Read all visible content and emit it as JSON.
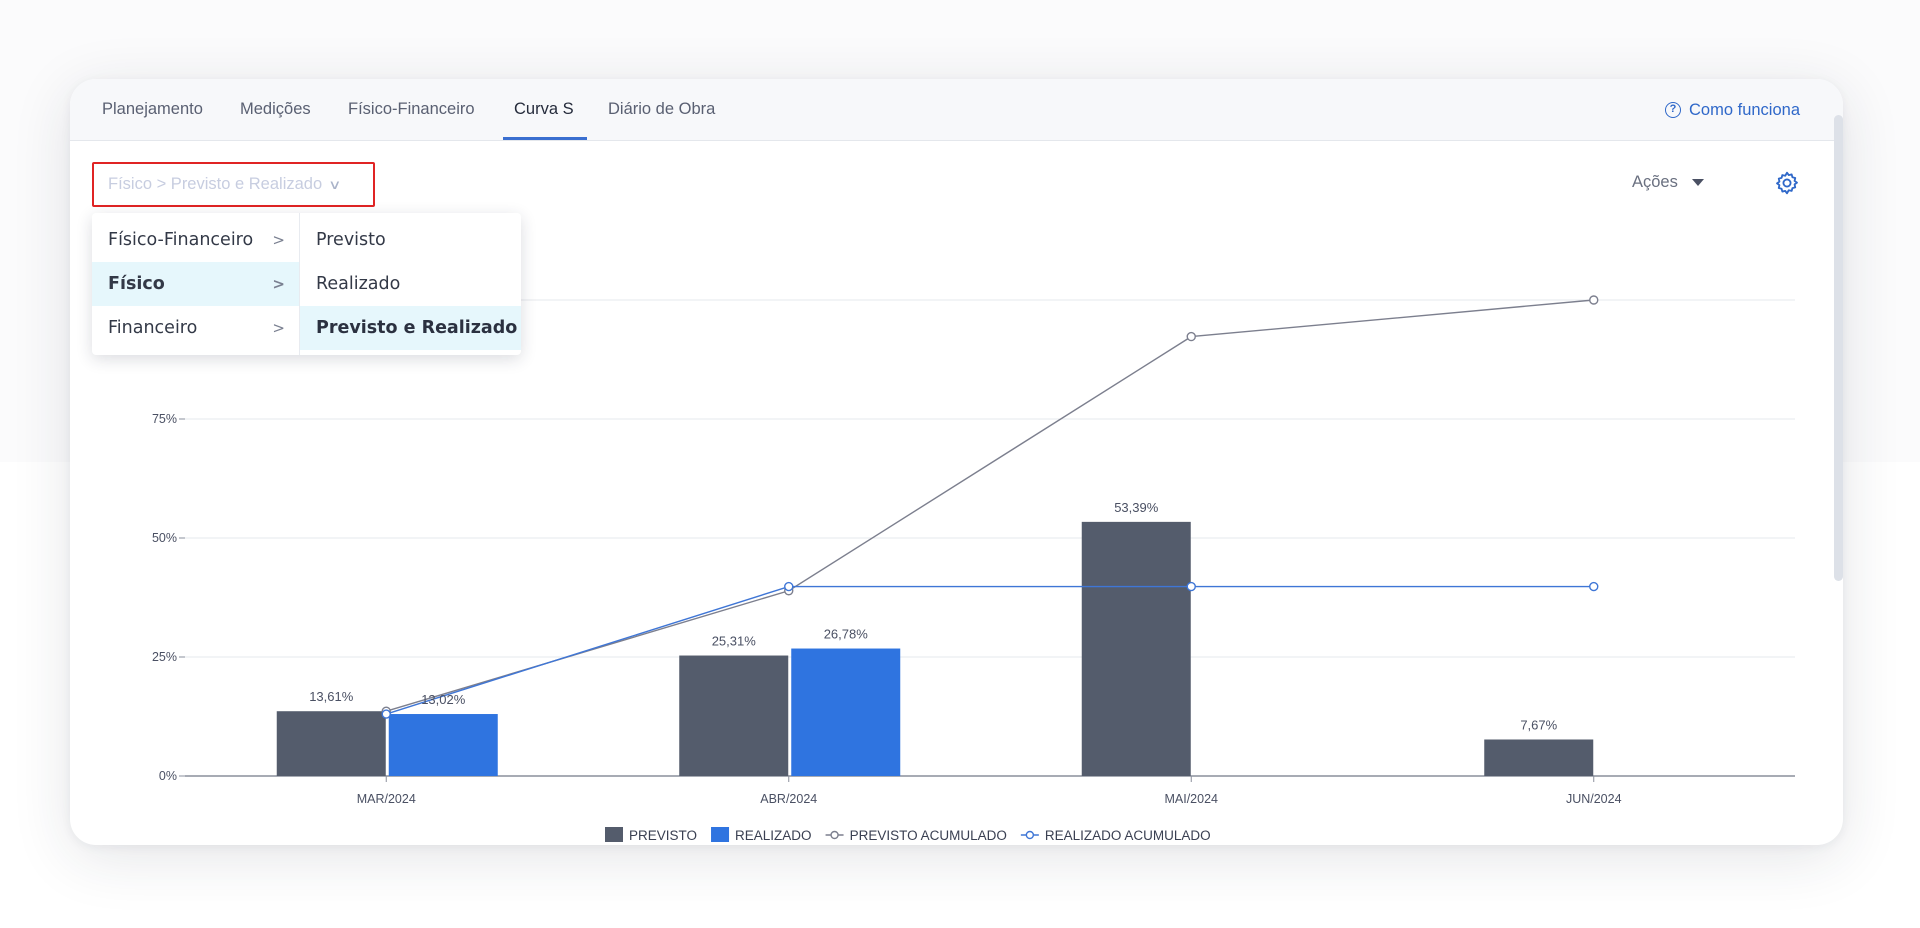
{
  "tabs": {
    "items": [
      "Planejamento",
      "Medições",
      "Físico-Financeiro",
      "Curva S",
      "Diário de Obra"
    ],
    "active": "Curva S",
    "help_label": "Como funciona",
    "help_icon": "question-circle-icon"
  },
  "selector": {
    "label": "Físico > Previsto e Realizado",
    "icon": "chevron-down-icon"
  },
  "toolbar": {
    "actions_label": "Ações",
    "settings_icon": "gear-icon"
  },
  "menu": {
    "col1": [
      "Físico-Financeiro",
      "Físico",
      "Financeiro"
    ],
    "col1_active": "Físico",
    "col2": [
      "Previsto",
      "Realizado",
      "Previsto e Realizado"
    ],
    "col2_active": "Previsto e Realizado"
  },
  "colors": {
    "previsto": "#545c6c",
    "realizado": "#2f74e0",
    "previsto_acum": "#7c7f8e",
    "realizado_acum": "#3f76d6",
    "accent": "#2f68c9",
    "highlight": "#e02424"
  },
  "chart_data": {
    "type": "bar",
    "categories": [
      "MAR/2024",
      "ABR/2024",
      "MAI/2024",
      "JUN/2024"
    ],
    "series": [
      {
        "name": "PREVISTO",
        "kind": "bar",
        "values": [
          13.61,
          25.31,
          53.39,
          7.67
        ],
        "labels": [
          "13,61%",
          "25,31%",
          "53,39%",
          "7,67%"
        ]
      },
      {
        "name": "REALIZADO",
        "kind": "bar",
        "values": [
          13.02,
          26.78,
          null,
          null
        ],
        "labels": [
          "13,02%",
          "26,78%",
          "",
          ""
        ]
      },
      {
        "name": "PREVISTO ACUMULADO",
        "kind": "line",
        "values": [
          13.61,
          38.92,
          92.31,
          100
        ]
      },
      {
        "name": "REALIZADO ACUMULADO",
        "kind": "line",
        "values": [
          13.02,
          39.8,
          39.8,
          39.8
        ]
      }
    ],
    "y_ticks": [
      "0%",
      "25%",
      "50%",
      "75%"
    ],
    "y_tick_values": [
      0,
      25,
      50,
      75
    ],
    "ylim": [
      0,
      100
    ],
    "grid": true,
    "legend_position": "bottom"
  }
}
